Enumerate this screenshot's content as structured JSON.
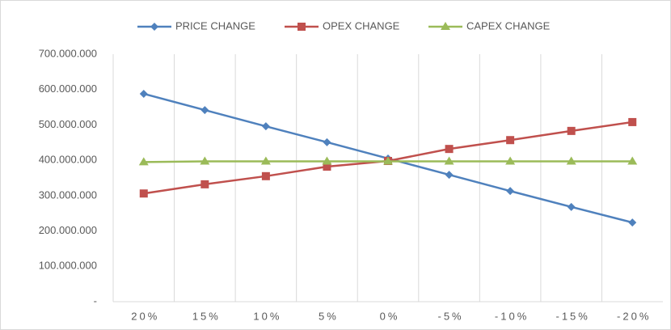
{
  "chart_data": {
    "type": "line",
    "categories": [
      "20%",
      "15%",
      "10%",
      "5%",
      "0%",
      "-5%",
      "-10%",
      "-15%",
      "-20%"
    ],
    "series": [
      {
        "name": "PRICE CHANGE",
        "color": "#4f81bd",
        "marker": "diamond",
        "values": [
          588000000,
          542000000,
          496000000,
          451000000,
          405000000,
          359000000,
          313000000,
          268000000,
          224000000
        ]
      },
      {
        "name": "OPEX CHANGE",
        "color": "#c0504d",
        "marker": "square",
        "values": [
          306000000,
          332000000,
          355000000,
          382000000,
          398000000,
          432000000,
          457000000,
          483000000,
          508000000
        ]
      },
      {
        "name": "CAPEX CHANGE",
        "color": "#9bbb59",
        "marker": "triangle",
        "values": [
          395000000,
          397000000,
          397000000,
          397000000,
          397000000,
          397000000,
          397000000,
          397000000,
          397000000
        ]
      }
    ],
    "ylim": [
      0,
      700000000
    ],
    "yticks": [
      {
        "value": 0,
        "label": "-"
      },
      {
        "value": 100000000,
        "label": "100.000.000"
      },
      {
        "value": 200000000,
        "label": "200.000.000"
      },
      {
        "value": 300000000,
        "label": "300.000.000"
      },
      {
        "value": 400000000,
        "label": "400.000.000"
      },
      {
        "value": 500000000,
        "label": "500.000.000"
      },
      {
        "value": 600000000,
        "label": "600.000.000"
      },
      {
        "value": 700000000,
        "label": "700.000.000"
      }
    ],
    "legend": "top"
  }
}
